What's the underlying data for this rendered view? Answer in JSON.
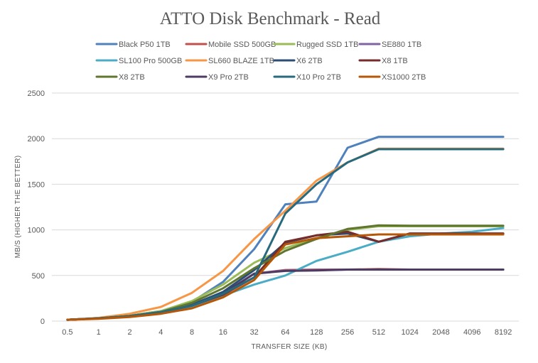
{
  "chart_data": {
    "type": "line",
    "title": "ATTO Disk Benchmark - Read",
    "xlabel": "TRANSFER SIZE (KB)",
    "ylabel": "MB/S (HIGHER THE BETTER)",
    "ylim": [
      0,
      2500
    ],
    "yticks": [
      0,
      500,
      1000,
      1500,
      2000,
      2500
    ],
    "grid": true,
    "legend_position": "top",
    "x": [
      "0.5",
      "1",
      "2",
      "4",
      "8",
      "16",
      "32",
      "64",
      "128",
      "256",
      "512",
      "1024",
      "2048",
      "4096",
      "8192"
    ],
    "series": [
      {
        "name": "Black P50 1TB",
        "color": "#4f81bd",
        "values": [
          15,
          30,
          60,
          110,
          210,
          430,
          790,
          1280,
          1310,
          1900,
          2020,
          2020,
          2020,
          2020,
          2020
        ]
      },
      {
        "name": "Mobile SSD 500GB",
        "color": "#c0504d",
        "values": [
          15,
          30,
          55,
          100,
          170,
          300,
          520,
          560,
          565,
          565,
          570,
          565,
          565,
          565,
          565
        ]
      },
      {
        "name": "Rugged SSD 1TB",
        "color": "#9bbb59",
        "values": [
          15,
          30,
          60,
          110,
          220,
          400,
          640,
          800,
          910,
          1000,
          1040,
          1040,
          1040,
          1040,
          1040
        ]
      },
      {
        "name": "SE880 1TB",
        "color": "#8064a2",
        "values": [
          15,
          30,
          55,
          100,
          170,
          300,
          520,
          555,
          560,
          565,
          565,
          565,
          565,
          565,
          565
        ]
      },
      {
        "name": "SL100 Pro 500GB",
        "color": "#4bacc6",
        "values": [
          15,
          30,
          50,
          90,
          160,
          280,
          400,
          500,
          660,
          760,
          870,
          930,
          960,
          980,
          1020
        ]
      },
      {
        "name": "SL660 BLAZE 1TB",
        "color": "#f79646",
        "values": [
          15,
          35,
          80,
          155,
          310,
          550,
          900,
          1210,
          1540,
          1740,
          1890,
          1890,
          1890,
          1890,
          1890
        ]
      },
      {
        "name": "X6 2TB",
        "color": "#2c4d75",
        "values": [
          15,
          30,
          55,
          100,
          180,
          320,
          560,
          860,
          940,
          960,
          870,
          960,
          960,
          960,
          960
        ]
      },
      {
        "name": "X8 1TB",
        "color": "#772c2a",
        "values": [
          15,
          30,
          55,
          100,
          170,
          290,
          480,
          870,
          940,
          980,
          870,
          960,
          960,
          960,
          960
        ]
      },
      {
        "name": "X8 2TB",
        "color": "#5f7530",
        "values": [
          15,
          30,
          55,
          100,
          200,
          360,
          580,
          770,
          900,
          1010,
          1050,
          1045,
          1045,
          1045,
          1045
        ]
      },
      {
        "name": "X9 Pro 2TB",
        "color": "#4d3b62",
        "values": [
          15,
          30,
          50,
          95,
          170,
          300,
          520,
          550,
          555,
          565,
          565,
          565,
          565,
          565,
          565
        ]
      },
      {
        "name": "X10 Pro 2TB",
        "color": "#276a7c",
        "values": [
          15,
          30,
          55,
          100,
          170,
          300,
          480,
          1180,
          1500,
          1740,
          1885,
          1885,
          1885,
          1885,
          1885
        ]
      },
      {
        "name": "XS1000 2TB",
        "color": "#b65708",
        "values": [
          15,
          25,
          45,
          80,
          140,
          260,
          450,
          840,
          910,
          930,
          950,
          950,
          950,
          950,
          950
        ]
      }
    ]
  }
}
